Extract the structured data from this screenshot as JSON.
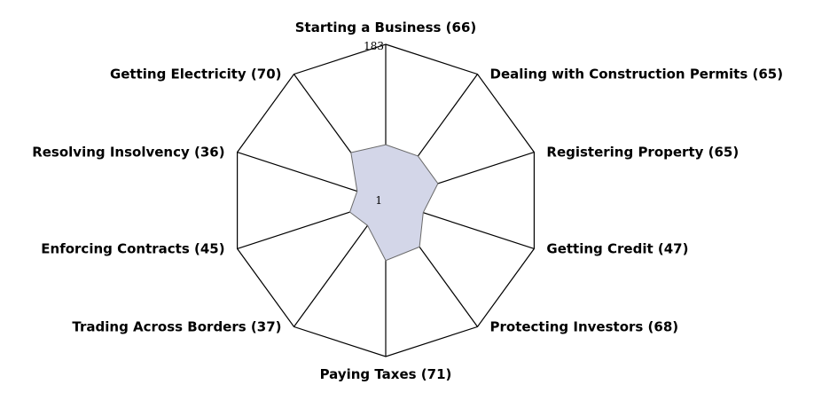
{
  "chart_data": {
    "type": "radar",
    "scale_max_label": "183",
    "scale_min_label": "1",
    "range": [
      1,
      183
    ],
    "categories": [
      {
        "name": "Starting a Business",
        "value": 66,
        "label": "Starting a Business (66)"
      },
      {
        "name": "Dealing with Construction Permits",
        "value": 65,
        "label": "Dealing with Construction Permits (65)"
      },
      {
        "name": "Registering Property",
        "value": 65,
        "label": "Registering Property (65)"
      },
      {
        "name": "Getting Credit",
        "value": 47,
        "label": "Getting Credit (47)"
      },
      {
        "name": "Protecting Investors",
        "value": 68,
        "label": "Protecting Investors (68)"
      },
      {
        "name": "Paying Taxes",
        "value": 71,
        "label": "Paying Taxes (71)"
      },
      {
        "name": "Trading Across Borders",
        "value": 37,
        "label": "Trading Across Borders (37)"
      },
      {
        "name": "Enforcing Contracts",
        "value": 45,
        "label": "Enforcing Contracts (45)"
      },
      {
        "name": "Resolving Insolvency",
        "value": 36,
        "label": "Resolving Insolvency (36)"
      },
      {
        "name": "Getting Electricity",
        "value": 70,
        "label": "Getting Electricity (70)"
      }
    ],
    "colors": {
      "area_fill": "#d3d6e8",
      "area_stroke": "#6a6a6a",
      "outline": "#000000"
    }
  }
}
